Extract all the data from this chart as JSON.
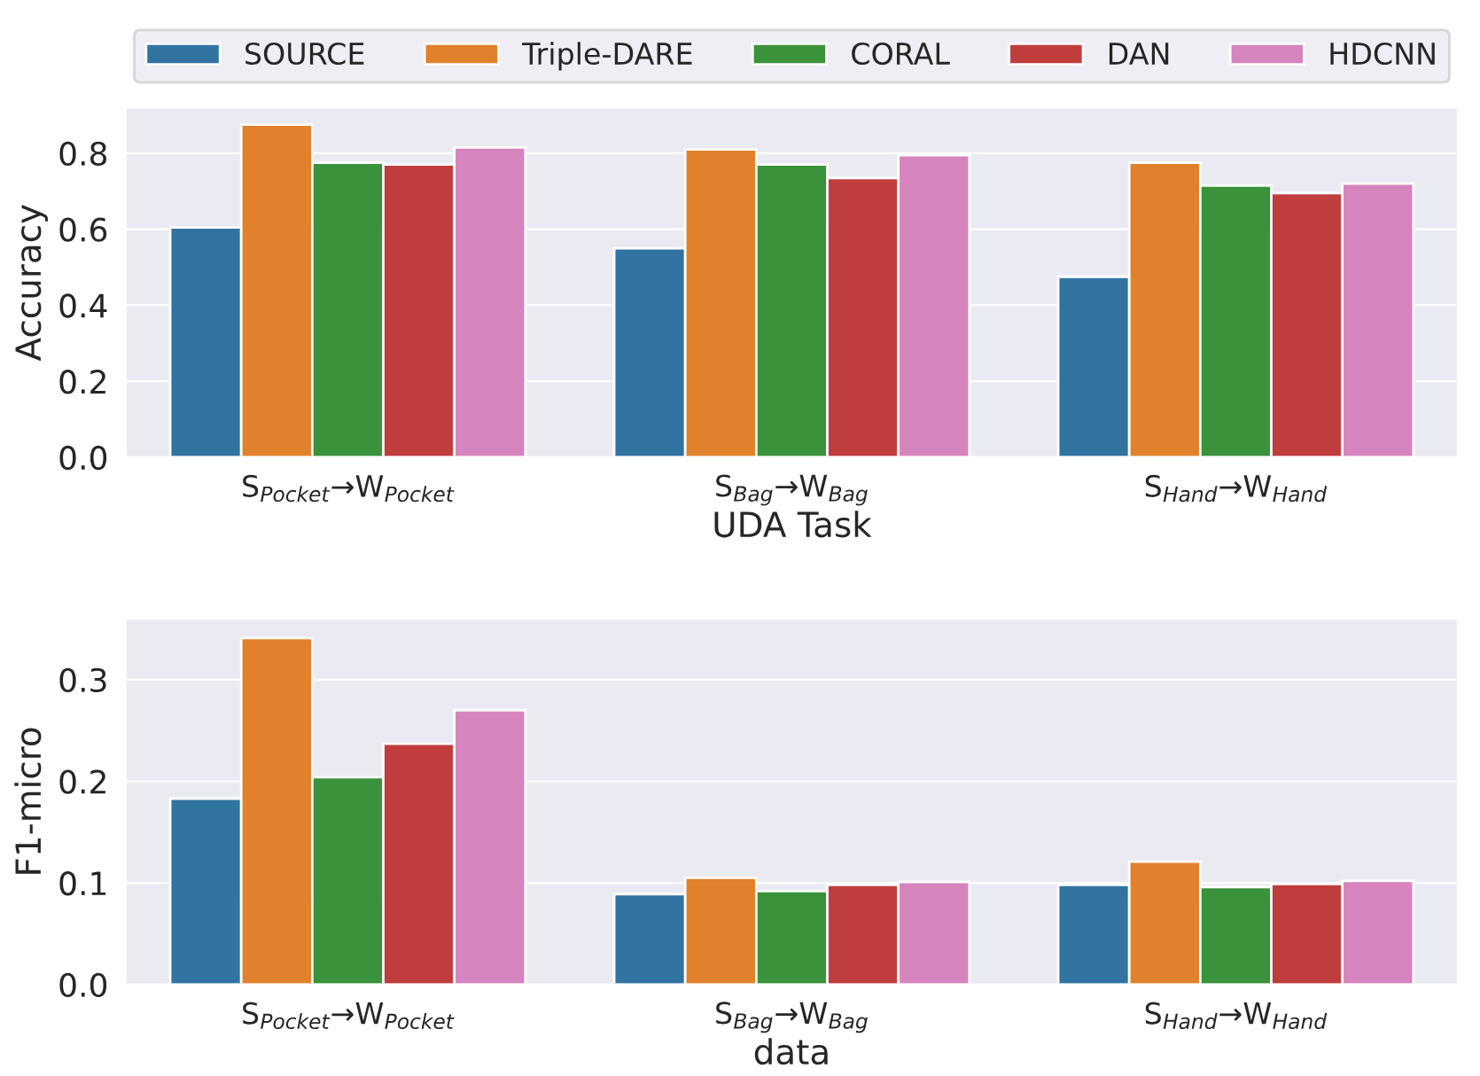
{
  "chart_data": [
    {
      "type": "bar",
      "xlabel": "UDA Task",
      "ylabel": "Accuracy",
      "categories": [
        "S$_{Pocket}$→W$_{Pocket}$",
        "S$_{Bag}$→W$_{Bag}$",
        "S$_{Hand}$→W$_{Hand}$"
      ],
      "ylim": [
        0,
        0.92
      ],
      "yticks": [
        {
          "value": 0,
          "label": "0.0"
        },
        0.2,
        0.4,
        0.6,
        0.8
      ],
      "grid": "y",
      "legend": "top",
      "series": [
        {
          "name": "SOURCE",
          "color": "#3274a1",
          "values": [
            0.605,
            0.55,
            0.475
          ]
        },
        {
          "name": "Triple-DARE",
          "color": "#e1812c",
          "values": [
            0.875,
            0.81,
            0.775
          ]
        },
        {
          "name": "CORAL",
          "color": "#3a923a",
          "values": [
            0.775,
            0.77,
            0.715
          ]
        },
        {
          "name": "DAN",
          "color": "#c03d3e",
          "values": [
            0.77,
            0.735,
            0.695
          ]
        },
        {
          "name": "HDCNN",
          "color": "#d684bd",
          "values": [
            0.815,
            0.795,
            0.72
          ]
        }
      ]
    },
    {
      "type": "bar",
      "xlabel": "data",
      "ylabel": "F1-micro",
      "categories": [
        "S$_{Pocket}$→W$_{Pocket}$",
        "S$_{Bag}$→W$_{Bag}$",
        "S$_{Hand}$→W$_{Hand}$"
      ],
      "ylim": [
        0,
        0.36
      ],
      "yticks": [
        {
          "value": 0,
          "label": "0.0"
        },
        0.1,
        0.2,
        0.3
      ],
      "grid": "y",
      "series": [
        {
          "color": "#3274a1",
          "values": [
            0.183,
            0.089,
            0.098
          ]
        },
        {
          "color": "#e1812c",
          "values": [
            0.341,
            0.105,
            0.121
          ]
        },
        {
          "color": "#3a923a",
          "values": [
            0.204,
            0.092,
            0.096
          ]
        },
        {
          "color": "#c03d3e",
          "values": [
            0.237,
            0.098,
            0.099
          ]
        },
        {
          "color": "#d684bd",
          "values": [
            0.27,
            0.101,
            0.102
          ]
        }
      ]
    }
  ]
}
